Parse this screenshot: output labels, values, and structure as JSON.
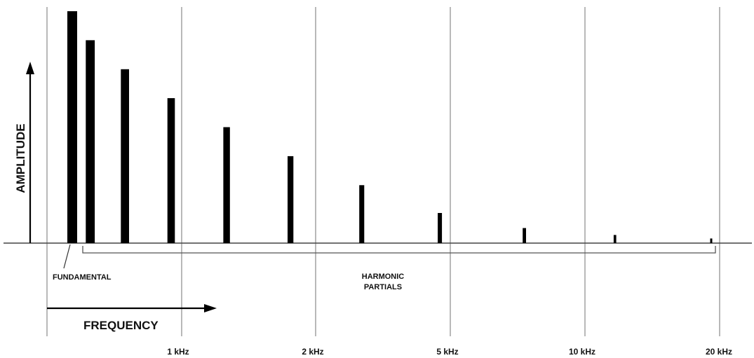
{
  "chart_data": {
    "type": "bar",
    "title": "",
    "xlabel": "FREQUENCY",
    "ylabel": "AMPLITUDE",
    "x_ticks": [
      "1 kHz",
      "2 kHz",
      "5 kHz",
      "10 kHz",
      "20 kHz"
    ],
    "annotations": {
      "fundamental": "FUNDAMENTAL",
      "harmonics": [
        "HARMONIC",
        "PARTIALS"
      ]
    },
    "partials": [
      {
        "harmonic": 1,
        "amplitude": 1.0
      },
      {
        "harmonic": 2,
        "amplitude": 0.875
      },
      {
        "harmonic": 3,
        "amplitude": 0.75
      },
      {
        "harmonic": 4,
        "amplitude": 0.625
      },
      {
        "harmonic": 5,
        "amplitude": 0.5
      },
      {
        "harmonic": 6,
        "amplitude": 0.375
      },
      {
        "harmonic": 7,
        "amplitude": 0.25
      },
      {
        "harmonic": 8,
        "amplitude": 0.13
      },
      {
        "harmonic": 9,
        "amplitude": 0.065
      },
      {
        "harmonic": 10,
        "amplitude": 0.035
      },
      {
        "harmonic": 11,
        "amplitude": 0.02
      }
    ],
    "ylim": [
      0,
      1
    ],
    "grid": true,
    "colors": {
      "bars": "#000000",
      "grid": "#8a8a8a"
    }
  }
}
